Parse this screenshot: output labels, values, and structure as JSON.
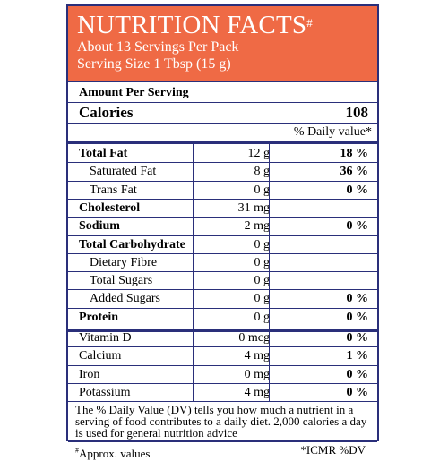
{
  "header": {
    "title": "NUTRITION FACTS",
    "title_mark": "#",
    "servings": "About 13 Servings Per Pack",
    "serving_size": "Serving Size 1 Tbsp (15 g)"
  },
  "amount_per_serving": "Amount Per Serving",
  "calories": {
    "label": "Calories",
    "value": "108"
  },
  "dv_header": "% Daily value*",
  "nutrients": [
    {
      "name": "Total Fat",
      "amount": "12 g",
      "dv": "18 %"
    },
    {
      "name": "Saturated Fat",
      "amount": "8 g",
      "dv": "36 %"
    },
    {
      "name": "Trans Fat",
      "amount": "0 g",
      "dv": "0 %"
    },
    {
      "name": "Cholesterol",
      "amount": "31 mg",
      "dv": ""
    },
    {
      "name": "Sodium",
      "amount": "2 mg",
      "dv": "0 %"
    },
    {
      "name": "Total Carbohydrate",
      "amount": "0 g",
      "dv": ""
    },
    {
      "name": "Dietary Fibre",
      "amount": "0 g",
      "dv": ""
    },
    {
      "name": "Total Sugars",
      "amount": "0 g",
      "dv": ""
    },
    {
      "name": "Added Sugars",
      "amount": "0 g",
      "dv": "0 %"
    },
    {
      "name": "Protein",
      "amount": "0 g",
      "dv": "0 %"
    }
  ],
  "vitamins": [
    {
      "name": "Vitamin D",
      "amount": "0 mcg",
      "dv": "0 %"
    },
    {
      "name": "Calcium",
      "amount": "4 mg",
      "dv": "1 %"
    },
    {
      "name": "Iron",
      "amount": "0 mg",
      "dv": "0 %"
    },
    {
      "name": "Potassium",
      "amount": "4 mg",
      "dv": "0 %"
    }
  ],
  "footnote": "The % Daily Value (DV) tells you how much a nutrient in a serving of food contributes to a daily diet. 2,000 calories a day is used for general nutrition advice",
  "footer": {
    "left_mark": "#",
    "left": "Approx. values",
    "right": "*ICMR  %DV"
  },
  "colors": {
    "header_bg": "#ef6a45",
    "border": "#2a2f7a"
  }
}
